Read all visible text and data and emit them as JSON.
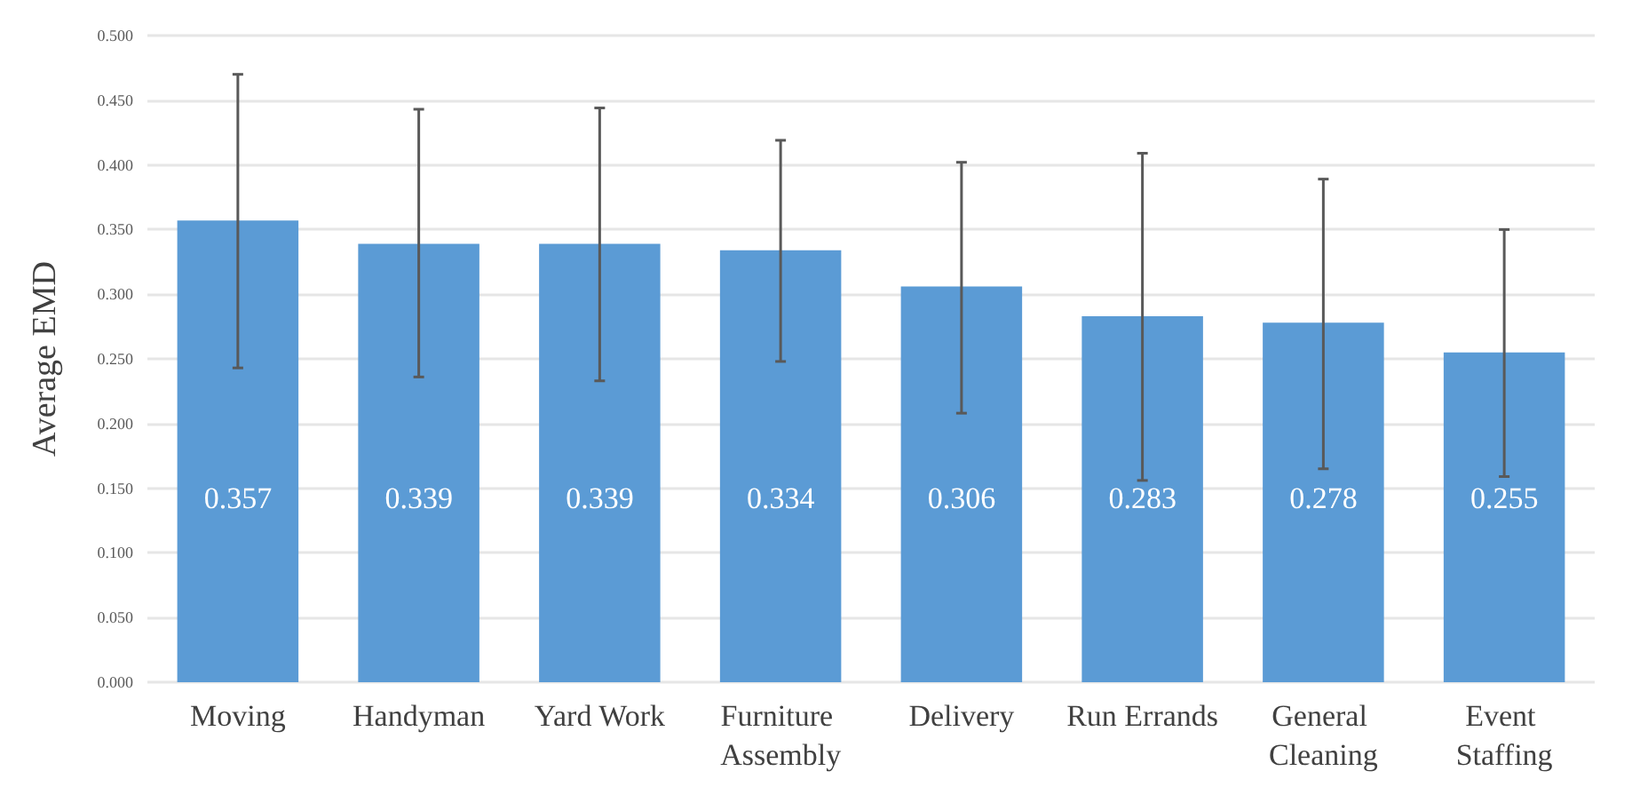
{
  "chart_data": {
    "type": "bar",
    "ylabel": "Average EMD",
    "categories": [
      "Moving",
      "Handyman",
      "Yard Work",
      "Furniture Assembly",
      "Delivery",
      "Run Errands",
      "General Cleaning",
      "Event Staffing"
    ],
    "values": [
      0.357,
      0.339,
      0.339,
      0.334,
      0.306,
      0.283,
      0.278,
      0.255
    ],
    "errors": [
      [
        0.243,
        0.47
      ],
      [
        0.236,
        0.443
      ],
      [
        0.233,
        0.444
      ],
      [
        0.248,
        0.419
      ],
      [
        0.208,
        0.402
      ],
      [
        0.156,
        0.409
      ],
      [
        0.165,
        0.389
      ],
      [
        0.159,
        0.35
      ]
    ],
    "color": "#5b9bd5",
    "data_labels": true,
    "grid": "y",
    "ylim": [
      0,
      0.5
    ],
    "yticks": [
      {
        "value": 0,
        "label": "0.000"
      },
      {
        "value": 0.05,
        "label": "0.050"
      },
      {
        "value": 0.1,
        "label": "0.100"
      },
      {
        "value": 0.15,
        "label": "0.150"
      },
      {
        "value": 0.2,
        "label": "0.200"
      },
      {
        "value": 0.25,
        "label": "0.250"
      },
      {
        "value": 0.3,
        "label": "0.300"
      },
      {
        "value": 0.35,
        "label": "0.350"
      },
      {
        "value": 0.4,
        "label": "0.400"
      },
      {
        "value": 0.45,
        "label": "0.450"
      },
      {
        "value": 0.5,
        "label": "0.500"
      }
    ]
  }
}
